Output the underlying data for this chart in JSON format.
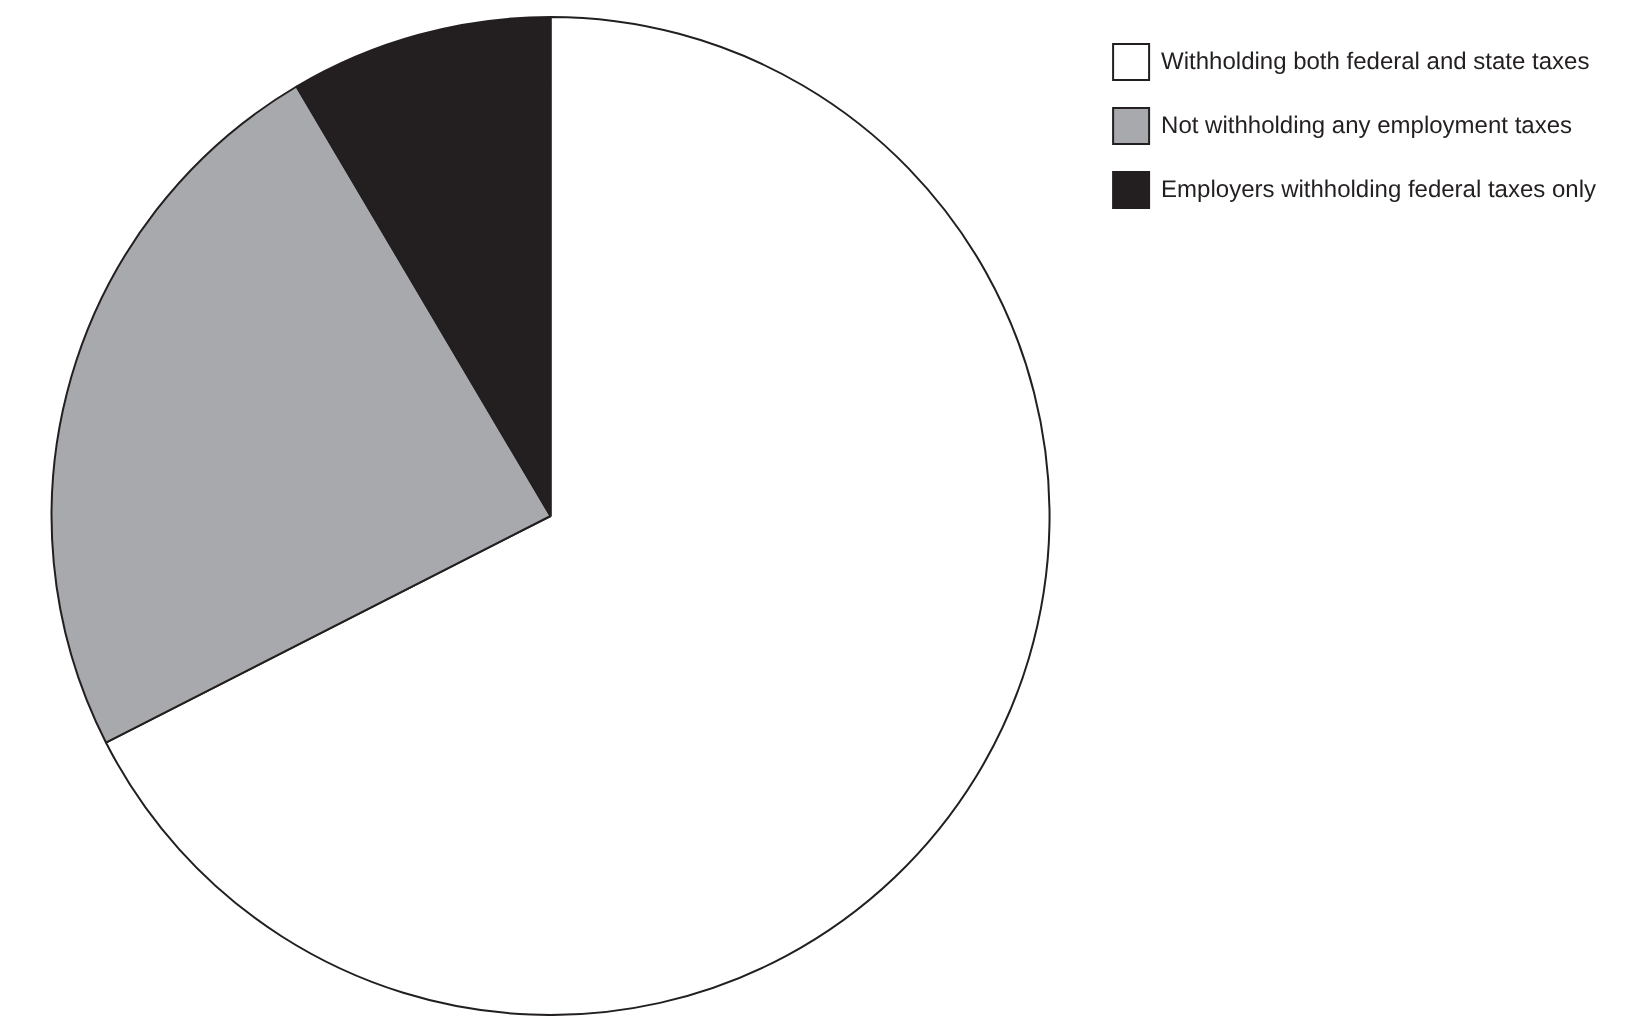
{
  "chart_data": {
    "type": "pie",
    "categories": [
      "Withholding both federal and state taxes",
      "Not withholding any employment taxes",
      "Employers withholding federal taxes only"
    ],
    "values": [
      67.5,
      24,
      8.5
    ],
    "colors": [
      "#ffffff",
      "#a7a9ac",
      "#231f20"
    ],
    "legend": "top right"
  }
}
